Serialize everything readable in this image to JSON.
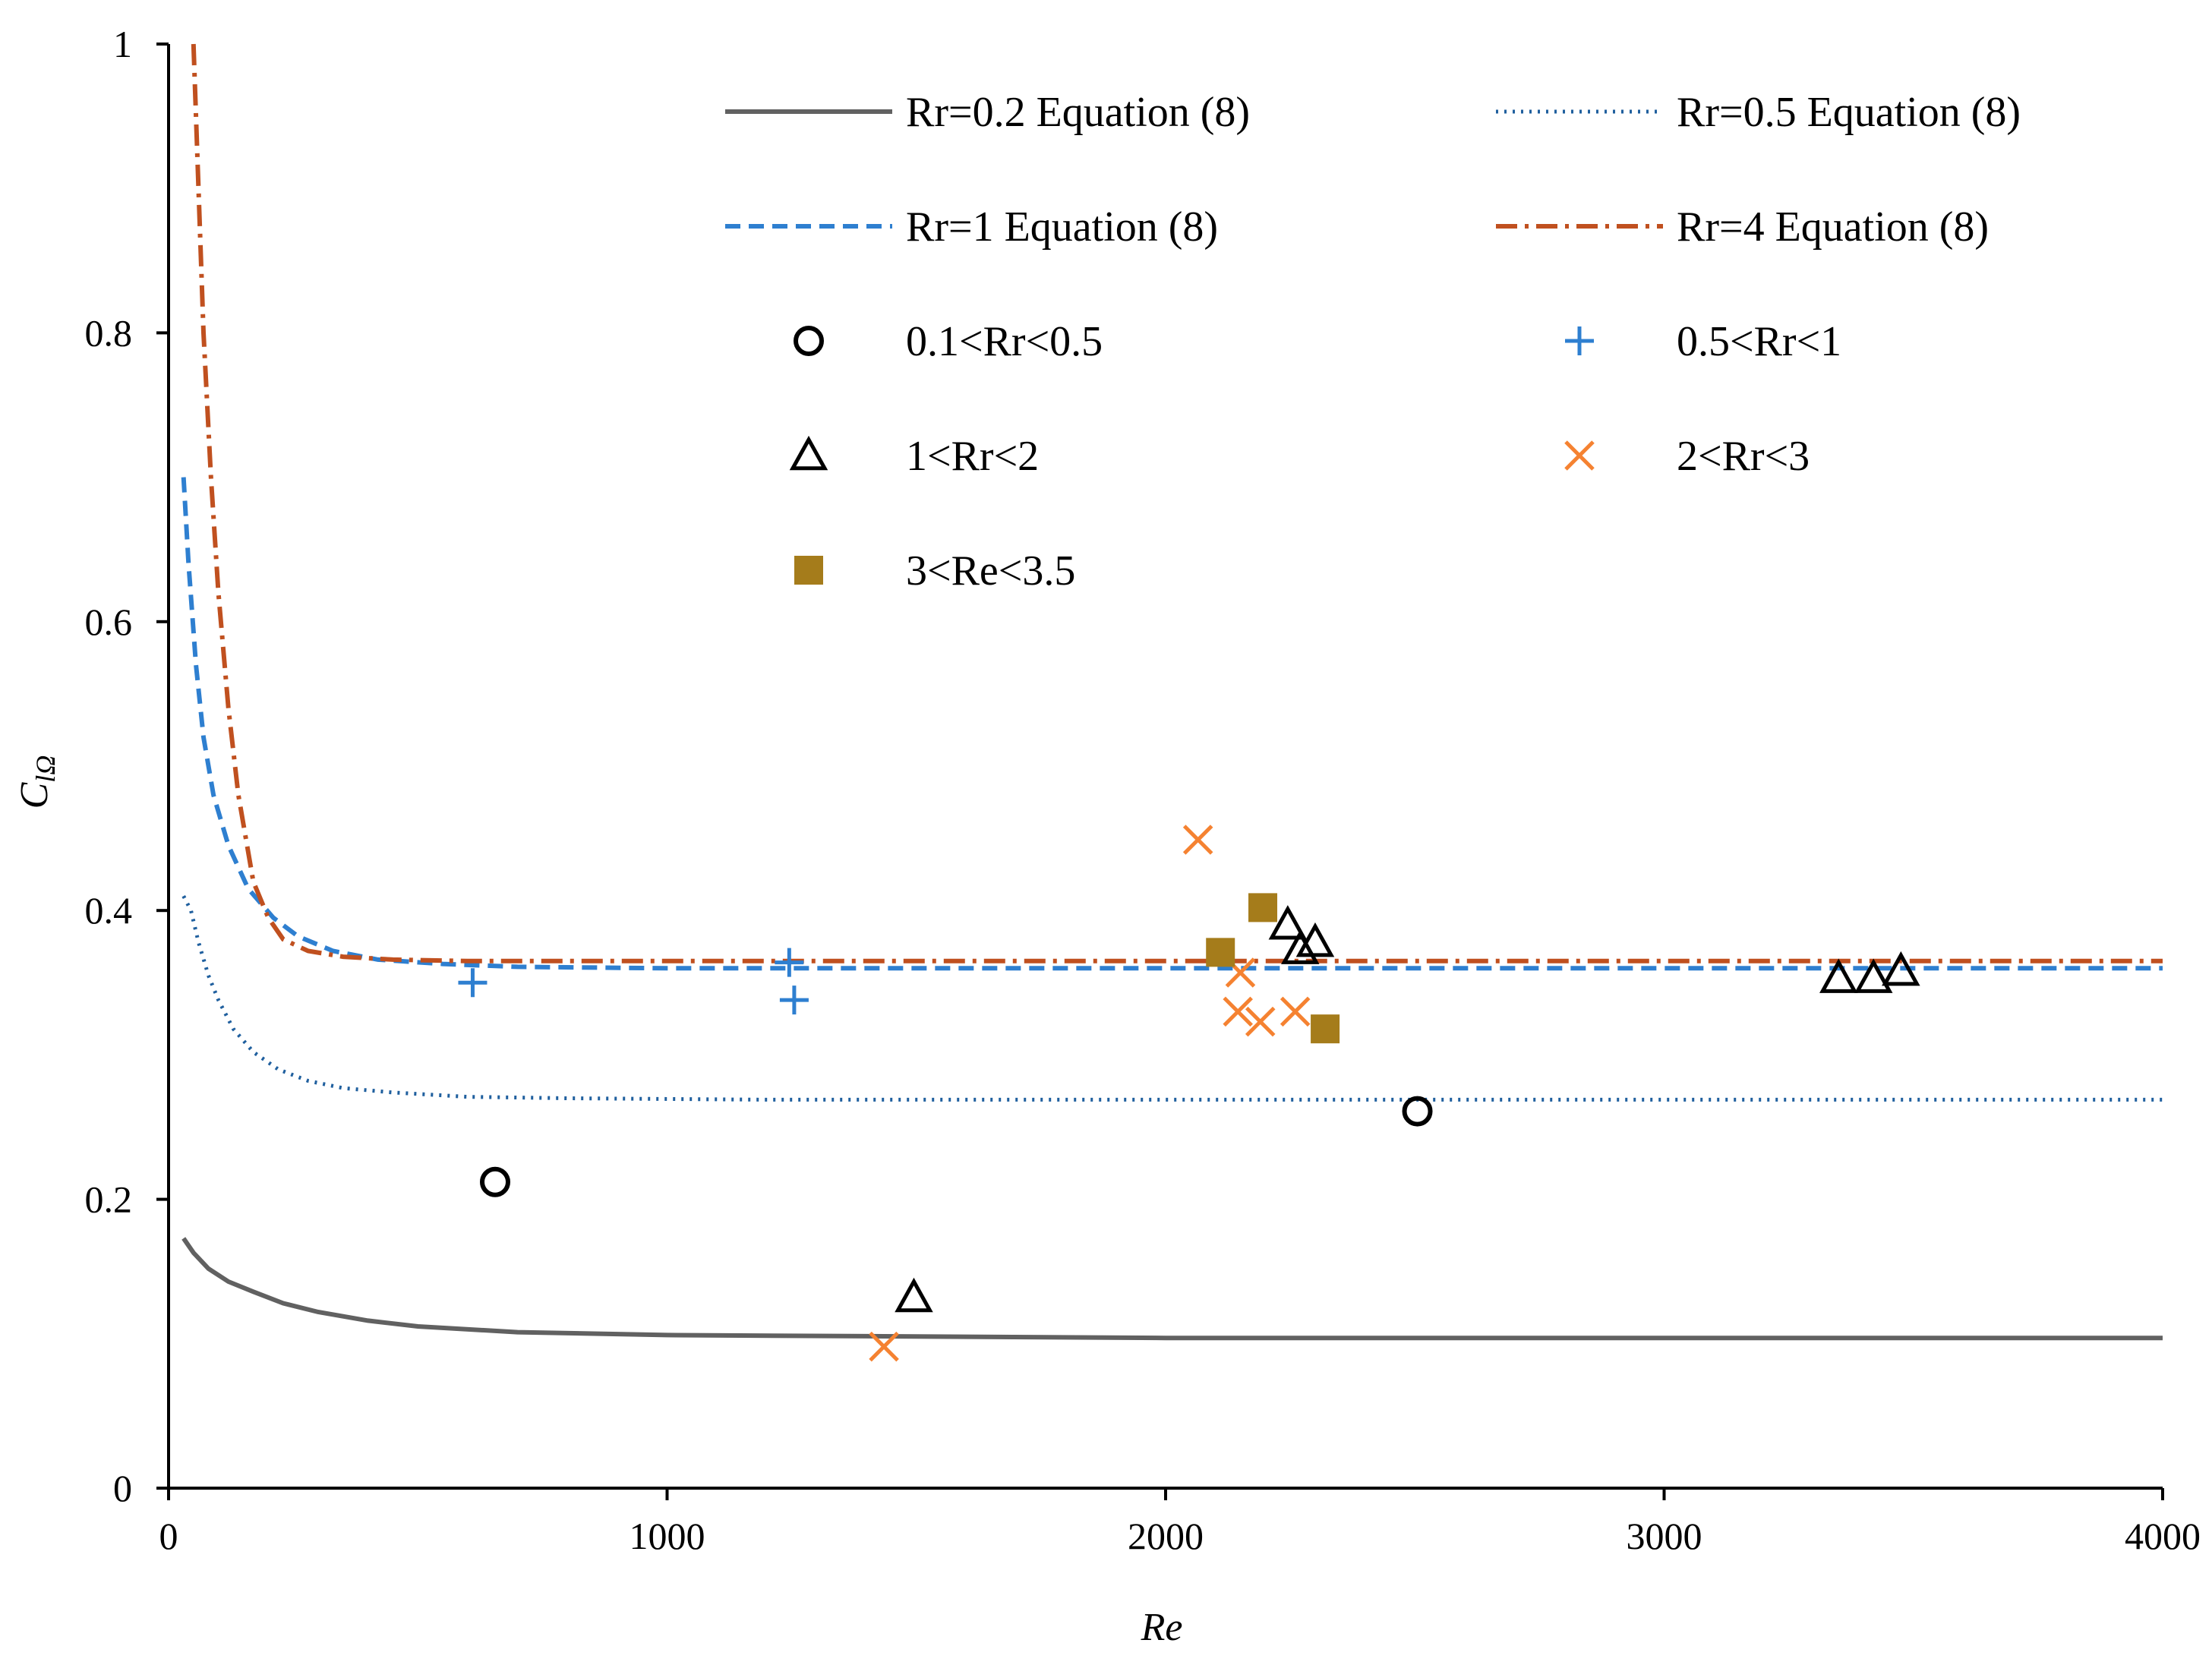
{
  "chart_data": {
    "type": "scatter",
    "title": "",
    "xlabel": "Re",
    "ylabel": "C",
    "ylabel_subscript": "lΩ",
    "xlim": [
      0,
      4000
    ],
    "ylim": [
      0,
      1
    ],
    "x_ticks": [
      "0",
      "1000",
      "2000",
      "3000",
      "4000"
    ],
    "y_ticks": [
      "0",
      "0.2",
      "0.4",
      "0.6",
      "0.8",
      "1"
    ],
    "grid": false,
    "legend_position": "top-right",
    "series": [
      {
        "name": "Rr=0.2 Equation (8)",
        "kind": "line",
        "style": "solid",
        "color": "#616161",
        "x": [
          30,
          50,
          80,
          120,
          170,
          230,
          300,
          400,
          500,
          700,
          1000,
          1500,
          2000,
          3000,
          4000
        ],
        "y": [
          0.173,
          0.163,
          0.152,
          0.143,
          0.136,
          0.128,
          0.122,
          0.116,
          0.112,
          0.108,
          0.106,
          0.105,
          0.104,
          0.104,
          0.104
        ]
      },
      {
        "name": "Rr=0.5 Equation (8)",
        "kind": "line",
        "style": "dotted",
        "color": "#1f5f9e",
        "x": [
          30,
          45,
          60,
          80,
          100,
          130,
          170,
          220,
          280,
          350,
          450,
          600,
          800,
          1200,
          2000,
          3000,
          4000
        ],
        "y": [
          0.41,
          0.4,
          0.378,
          0.355,
          0.338,
          0.318,
          0.302,
          0.29,
          0.282,
          0.277,
          0.274,
          0.271,
          0.27,
          0.269,
          0.269,
          0.269,
          0.269
        ]
      },
      {
        "name": "Rr=1 Equation (8)",
        "kind": "line",
        "style": "dashed",
        "color": "#2e7fd0",
        "x": [
          30,
          40,
          55,
          70,
          90,
          120,
          160,
          210,
          260,
          330,
          420,
          550,
          700,
          1000,
          2000,
          3000,
          4000
        ],
        "y": [
          0.7,
          0.64,
          0.57,
          0.52,
          0.48,
          0.445,
          0.415,
          0.395,
          0.382,
          0.372,
          0.366,
          0.363,
          0.361,
          0.36,
          0.36,
          0.36,
          0.36
        ]
      },
      {
        "name": "Rr=4 Equation (8)",
        "kind": "line",
        "style": "dashdot",
        "color": "#c0501f",
        "x": [
          50,
          60,
          70,
          85,
          100,
          120,
          140,
          170,
          200,
          230,
          280,
          350,
          450,
          600,
          1000,
          2000,
          3000,
          4000
        ],
        "y": [
          1.0,
          0.9,
          0.8,
          0.7,
          0.62,
          0.54,
          0.48,
          0.42,
          0.395,
          0.38,
          0.372,
          0.368,
          0.366,
          0.365,
          0.365,
          0.365,
          0.365,
          0.365
        ]
      },
      {
        "name": "0.1<Rr<0.5",
        "kind": "scatter",
        "marker": "circle",
        "color": "#000000",
        "points": [
          [
            655,
            0.212
          ],
          [
            2505,
            0.261
          ]
        ]
      },
      {
        "name": "0.5<Rr<1",
        "kind": "scatter",
        "marker": "plus",
        "color": "#2e7fd0",
        "points": [
          [
            610,
            0.35
          ],
          [
            1245,
            0.364
          ],
          [
            1255,
            0.338
          ]
        ]
      },
      {
        "name": "1<Rr<2",
        "kind": "scatter",
        "marker": "triangle",
        "color": "#000000",
        "points": [
          [
            1495,
            0.132
          ],
          [
            2245,
            0.39
          ],
          [
            2270,
            0.373
          ],
          [
            2300,
            0.378
          ],
          [
            3350,
            0.353
          ],
          [
            3420,
            0.353
          ],
          [
            3475,
            0.358
          ]
        ]
      },
      {
        "name": "2<Rr<3",
        "kind": "scatter",
        "marker": "x",
        "color": "#f58231",
        "points": [
          [
            1435,
            0.098
          ],
          [
            2065,
            0.449
          ],
          [
            2150,
            0.357
          ],
          [
            2145,
            0.33
          ],
          [
            2190,
            0.323
          ],
          [
            2260,
            0.33
          ]
        ]
      },
      {
        "name": "3<Re<3.5",
        "kind": "scatter",
        "marker": "square",
        "color": "#a57c1b",
        "points": [
          [
            2110,
            0.371
          ],
          [
            2195,
            0.402
          ],
          [
            2320,
            0.318
          ]
        ]
      }
    ]
  }
}
